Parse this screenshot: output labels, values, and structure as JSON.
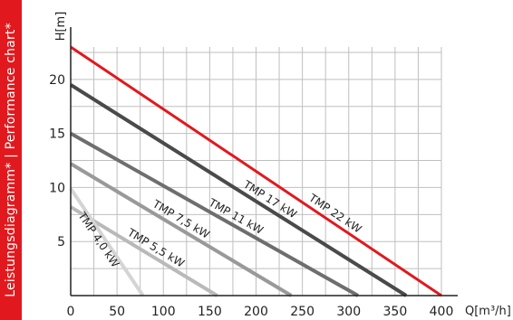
{
  "side_label": "Leistungsdiagramm* | Performance chart*",
  "colors": {
    "band": "#e1191e",
    "grid": "#bfbfbf",
    "axis": "#222222"
  },
  "chart_data": {
    "type": "line",
    "title": "",
    "xlabel": "Q[m³/h]",
    "ylabel": "H[m]",
    "xlim": [
      0,
      400
    ],
    "ylim": [
      0,
      23
    ],
    "x_ticks": [
      0,
      50,
      100,
      150,
      200,
      250,
      300,
      350,
      400
    ],
    "y_ticks": [
      5,
      10,
      15,
      20
    ],
    "grid": true,
    "series": [
      {
        "name": "TMP 22 kW",
        "color": "#e1191e",
        "points": [
          [
            0,
            23.0
          ],
          [
            400,
            0
          ]
        ]
      },
      {
        "name": "TMP 17 kW",
        "color": "#4a4a4a",
        "points": [
          [
            0,
            19.5
          ],
          [
            362,
            0
          ]
        ]
      },
      {
        "name": "TMP 11 kW",
        "color": "#6e6e6e",
        "points": [
          [
            0,
            15.0
          ],
          [
            310,
            0
          ]
        ]
      },
      {
        "name": "TMP 7,5 kW",
        "color": "#999999",
        "points": [
          [
            0,
            12.2
          ],
          [
            238,
            0
          ]
        ]
      },
      {
        "name": "TMP 5,5 kW",
        "color": "#b9b9b9",
        "points": [
          [
            0,
            8.2
          ],
          [
            158,
            0
          ]
        ]
      },
      {
        "name": "TMP 4,0 kW",
        "color": "#d4d4d4",
        "points": [
          [
            0,
            9.9
          ],
          [
            78,
            0
          ]
        ]
      }
    ]
  }
}
